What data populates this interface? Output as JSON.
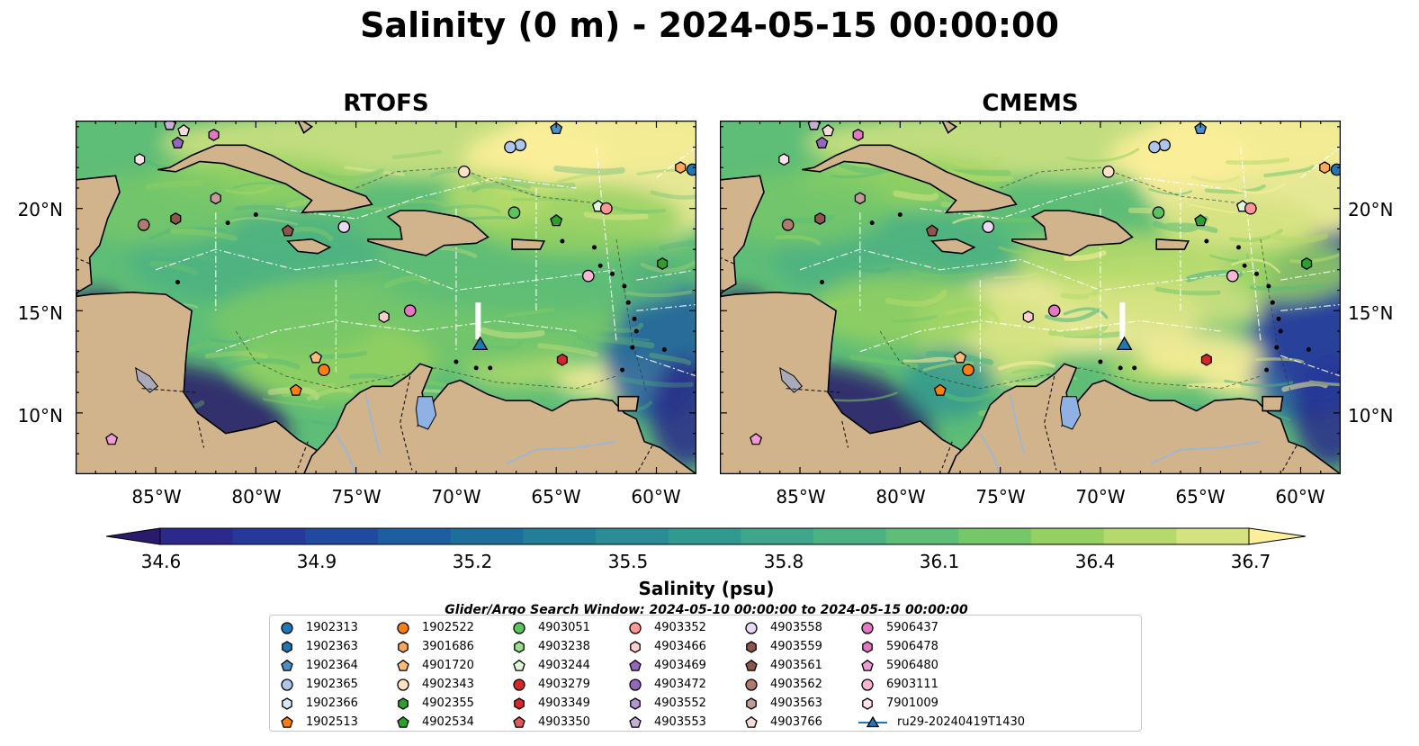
{
  "title": "Salinity (0 m) - 2024-05-15 00:00:00",
  "panels": [
    {
      "id": "rtofs",
      "title": "RTOFS"
    },
    {
      "id": "cmems",
      "title": "CMEMS"
    }
  ],
  "lat_ticks": [
    "20°N",
    "15°N",
    "10°N"
  ],
  "lon_ticks": [
    "85°W",
    "80°W",
    "75°W",
    "70°W",
    "65°W",
    "60°W"
  ],
  "map_extent": {
    "lon": [
      -89,
      -58
    ],
    "lat": [
      7,
      24.3
    ]
  },
  "colorbar": {
    "label": "Salinity (psu)",
    "min": 34.6,
    "max": 36.7,
    "extend": "both",
    "ticks": [
      "34.6",
      "34.9",
      "35.2",
      "35.5",
      "35.8",
      "36.1",
      "36.4",
      "36.7"
    ],
    "colors": [
      "#2a1a6b",
      "#2b2a8a",
      "#27389b",
      "#204aa0",
      "#1d5ea0",
      "#1e6e9b",
      "#237e98",
      "#2a8c94",
      "#32998f",
      "#3ea68a",
      "#4cb282",
      "#5ebd77",
      "#76c76a",
      "#94d162",
      "#b5da6b",
      "#d4e380",
      "#fdef9a"
    ]
  },
  "search_window": "Glider/Argo Search Window: 2024-05-10 00:00:00 to 2024-05-15 00:00:00",
  "land_color": "#d2b48c",
  "legend": [
    {
      "label": "1902313",
      "marker": "circle",
      "color": "#1f77b4"
    },
    {
      "label": "1902363",
      "marker": "hexagon",
      "color": "#1f77b4"
    },
    {
      "label": "1902364",
      "marker": "pentagon",
      "color": "#4a90c8"
    },
    {
      "label": "1902365",
      "marker": "circle",
      "color": "#aec7e8"
    },
    {
      "label": "1902366",
      "marker": "hexagon",
      "color": "#d6e8f7"
    },
    {
      "label": "1902513",
      "marker": "pentagon",
      "color": "#ff7f0e"
    },
    {
      "label": "1902522",
      "marker": "circle",
      "color": "#ff7f0e"
    },
    {
      "label": "3901686",
      "marker": "hexagon",
      "color": "#ffa85c"
    },
    {
      "label": "4901720",
      "marker": "pentagon",
      "color": "#ffbb78"
    },
    {
      "label": "4902343",
      "marker": "circle",
      "color": "#ffe3c4"
    },
    {
      "label": "4902355",
      "marker": "hexagon",
      "color": "#2ca02c"
    },
    {
      "label": "4902534",
      "marker": "pentagon",
      "color": "#2ca02c"
    },
    {
      "label": "4903051",
      "marker": "circle",
      "color": "#5cc45c"
    },
    {
      "label": "4903238",
      "marker": "hexagon",
      "color": "#98df8a"
    },
    {
      "label": "4903244",
      "marker": "pentagon",
      "color": "#e0f7d8"
    },
    {
      "label": "4903279",
      "marker": "circle",
      "color": "#d62728"
    },
    {
      "label": "4903349",
      "marker": "hexagon",
      "color": "#d62728"
    },
    {
      "label": "4903350",
      "marker": "pentagon",
      "color": "#e0595a"
    },
    {
      "label": "4903352",
      "marker": "circle",
      "color": "#ff9896"
    },
    {
      "label": "4903466",
      "marker": "hexagon",
      "color": "#ffd0cf"
    },
    {
      "label": "4903469",
      "marker": "pentagon",
      "color": "#9467bd"
    },
    {
      "label": "4903472",
      "marker": "circle",
      "color": "#9467bd"
    },
    {
      "label": "4903552",
      "marker": "hexagon",
      "color": "#b194d4"
    },
    {
      "label": "4903553",
      "marker": "pentagon",
      "color": "#c5b0d5"
    },
    {
      "label": "4903558",
      "marker": "circle",
      "color": "#ead9f5"
    },
    {
      "label": "4903559",
      "marker": "hexagon",
      "color": "#8c564b"
    },
    {
      "label": "4903561",
      "marker": "pentagon",
      "color": "#8c564b"
    },
    {
      "label": "4903562",
      "marker": "circle",
      "color": "#b07a6e"
    },
    {
      "label": "4903563",
      "marker": "hexagon",
      "color": "#c49c94"
    },
    {
      "label": "4903766",
      "marker": "pentagon",
      "color": "#f3dcd5"
    },
    {
      "label": "5906437",
      "marker": "circle",
      "color": "#e377c2"
    },
    {
      "label": "5906478",
      "marker": "hexagon",
      "color": "#e377c2"
    },
    {
      "label": "5906480",
      "marker": "pentagon",
      "color": "#ef9bd6"
    },
    {
      "label": "6903111",
      "marker": "circle",
      "color": "#f7b6d2"
    },
    {
      "label": "7901009",
      "marker": "hexagon",
      "color": "#fde2ee"
    },
    {
      "label": "ru29-20240419T1430",
      "marker": "triangle-line",
      "color": "#1f77b4"
    }
  ],
  "floats": [
    {
      "id": "1902313",
      "lon": -58.2,
      "lat": 21.9
    },
    {
      "id": "1902364",
      "lon": -65.0,
      "lat": 23.9
    },
    {
      "id": "1902365",
      "lon": -66.8,
      "lat": 23.1
    },
    {
      "id": "1902365b",
      "lon": -67.3,
      "lat": 23.0
    },
    {
      "id": "1902522",
      "lon": -76.6,
      "lat": 12.1
    },
    {
      "id": "1902513",
      "lon": -78.0,
      "lat": 11.1
    },
    {
      "id": "3901686",
      "lon": -58.8,
      "lat": 22.0
    },
    {
      "id": "4901720",
      "lon": -77.0,
      "lat": 12.7
    },
    {
      "id": "4902343",
      "lon": -69.6,
      "lat": 21.8
    },
    {
      "id": "4902355",
      "lon": -59.7,
      "lat": 17.3
    },
    {
      "id": "4902534",
      "lon": -65.0,
      "lat": 19.4
    },
    {
      "id": "4903051",
      "lon": -67.1,
      "lat": 19.8
    },
    {
      "id": "4903244",
      "lon": -62.9,
      "lat": 20.1
    },
    {
      "id": "4903352",
      "lon": -62.5,
      "lat": 20.0
    },
    {
      "id": "4903349",
      "lon": -64.7,
      "lat": 12.6
    },
    {
      "id": "4903466",
      "lon": -73.6,
      "lat": 14.7
    },
    {
      "id": "4903469",
      "lon": -83.9,
      "lat": 23.2
    },
    {
      "id": "4903553",
      "lon": -84.3,
      "lat": 24.1
    },
    {
      "id": "4903558",
      "lon": -75.6,
      "lat": 19.1
    },
    {
      "id": "4903559",
      "lon": -84.0,
      "lat": 19.5
    },
    {
      "id": "4903561",
      "lon": -78.4,
      "lat": 18.9
    },
    {
      "id": "4903562",
      "lon": -85.6,
      "lat": 19.2
    },
    {
      "id": "4903563",
      "lon": -82.0,
      "lat": 20.5
    },
    {
      "id": "4903766",
      "lon": -83.6,
      "lat": 23.8
    },
    {
      "id": "5906437",
      "lon": -72.3,
      "lat": 15.0
    },
    {
      "id": "5906478",
      "lon": -82.1,
      "lat": 23.6
    },
    {
      "id": "5906480",
      "lon": -87.2,
      "lat": 8.7
    },
    {
      "id": "6903111",
      "lon": -63.4,
      "lat": 16.7
    },
    {
      "id": "7901009",
      "lon": -85.8,
      "lat": 22.4
    }
  ],
  "glider": {
    "id": "ru29-20240419T1430",
    "lon": -68.8,
    "lat": 13.3
  }
}
